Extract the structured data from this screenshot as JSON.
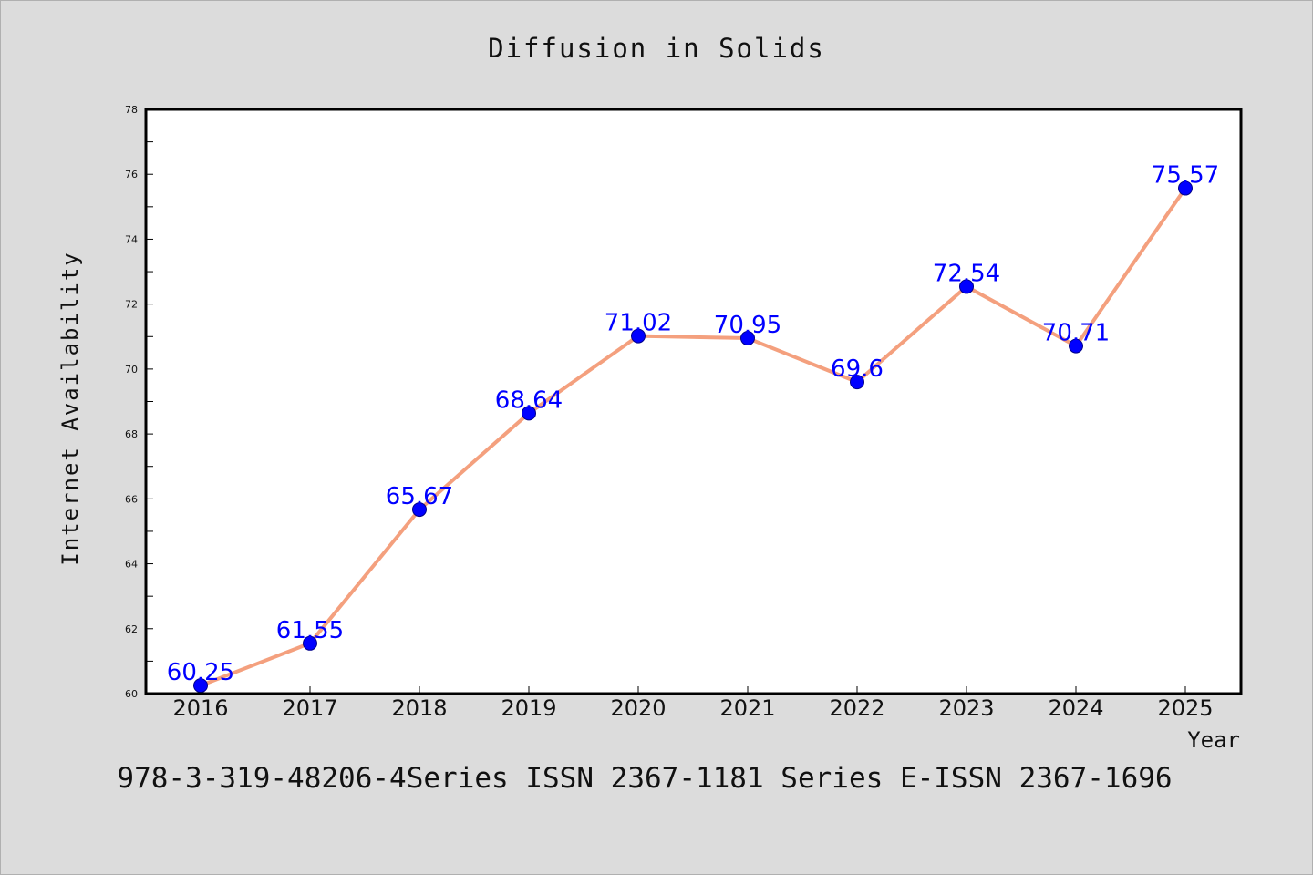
{
  "chart_data": {
    "type": "line",
    "title": "Diffusion in Solids",
    "xlabel": "Year",
    "ylabel": "Internet Availability",
    "categories": [
      "2016",
      "2017",
      "2018",
      "2019",
      "2020",
      "2021",
      "2022",
      "2023",
      "2024",
      "2025"
    ],
    "series": [
      {
        "values": [
          60.25,
          61.55,
          65.67,
          68.64,
          71.02,
          70.95,
          69.6,
          72.54,
          70.71,
          75.57
        ],
        "data_labels": [
          "60.25",
          "61.55",
          "65.67",
          "68.64",
          "71.02",
          "70.95",
          "69.6",
          "72.54",
          "70.71",
          "75.57"
        ],
        "line_color": "#f4a07e",
        "marker_color": "#0000ff"
      }
    ],
    "ylim": [
      60,
      78
    ],
    "yticks": [
      "60",
      "62",
      "64",
      "66",
      "68",
      "70",
      "72",
      "74",
      "76",
      "78"
    ],
    "grid": false,
    "legend": "none"
  },
  "footer": {
    "text": "978-3-319-48206-4Series ISSN 2367-1181 Series E-ISSN 2367-1696"
  }
}
